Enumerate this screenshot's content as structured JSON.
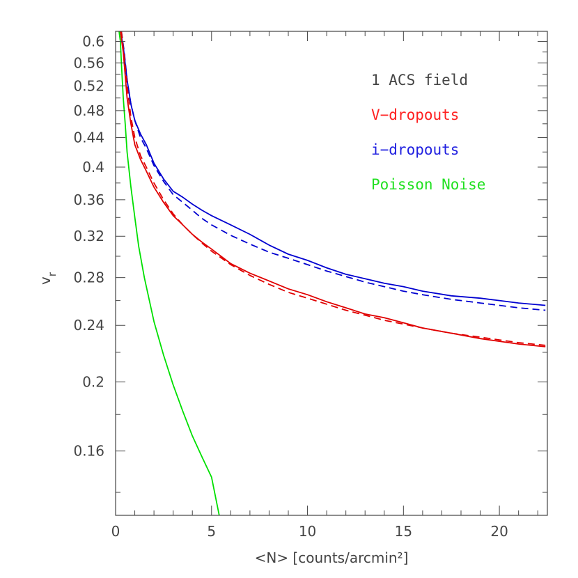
{
  "chart_data": {
    "type": "line",
    "title": "",
    "xlabel": "<N> [counts/arcmin²]",
    "ylabel_main": "v",
    "ylabel_sub": "r",
    "xlim": [
      0,
      22.5
    ],
    "ylim": [
      0.13,
      0.62
    ],
    "yscale": "log",
    "grid": false,
    "legend_position": "top-right",
    "x_ticks": [
      0,
      5,
      10,
      15,
      20
    ],
    "x_tick_labels": [
      "0",
      "5",
      "10",
      "15",
      "20"
    ],
    "y_ticks": [
      0.16,
      0.2,
      0.24,
      0.28,
      0.32,
      0.36,
      0.4,
      0.44,
      0.48,
      0.52,
      0.56,
      0.6
    ],
    "y_tick_labels": [
      "0.16",
      "0.2",
      "0.24",
      "0.28",
      "0.32",
      "0.36",
      "0.4",
      "0.44",
      "0.48",
      "0.52",
      "0.56",
      "0.6"
    ],
    "legend": {
      "header": "1 ACS field",
      "header_color": "#444444",
      "entries": [
        {
          "label": "V−dropouts",
          "color": "#ff2020"
        },
        {
          "label": "i−dropouts",
          "color": "#2020e0"
        },
        {
          "label": "Poisson Noise",
          "color": "#20e020"
        }
      ]
    },
    "series": [
      {
        "color": "#0000d0",
        "dash": "solid",
        "x": [
          0.25,
          0.4,
          0.6,
          0.8,
          1.0,
          1.3,
          1.6,
          2.0,
          2.5,
          3.0,
          3.5,
          4.0,
          4.5,
          5.0,
          6.0,
          7.0,
          8.0,
          9.0,
          10.0,
          11.0,
          12.0,
          13.0,
          14.0,
          15.0,
          16.0,
          17.5,
          19.0,
          20.0,
          21.0,
          22.4
        ],
        "y": [
          0.62,
          0.59,
          0.53,
          0.49,
          0.465,
          0.445,
          0.43,
          0.405,
          0.385,
          0.37,
          0.363,
          0.355,
          0.348,
          0.342,
          0.332,
          0.322,
          0.311,
          0.302,
          0.296,
          0.289,
          0.283,
          0.279,
          0.275,
          0.272,
          0.268,
          0.264,
          0.262,
          0.26,
          0.258,
          0.256
        ]
      },
      {
        "color": "#0000d0",
        "dash": "dashed",
        "x": [
          0.3,
          0.45,
          0.6,
          0.8,
          1.0,
          1.3,
          1.6,
          2.0,
          2.5,
          3.0,
          3.5,
          4.0,
          4.5,
          5.0,
          6.0,
          7.0,
          8.0,
          9.0,
          10.0,
          11.0,
          12.0,
          13.0,
          14.0,
          15.0,
          16.0,
          17.5,
          19.0,
          20.0,
          21.0,
          22.4
        ],
        "y": [
          0.62,
          0.58,
          0.53,
          0.49,
          0.465,
          0.44,
          0.425,
          0.402,
          0.382,
          0.366,
          0.357,
          0.348,
          0.339,
          0.332,
          0.321,
          0.312,
          0.304,
          0.298,
          0.292,
          0.286,
          0.281,
          0.276,
          0.272,
          0.268,
          0.265,
          0.261,
          0.258,
          0.256,
          0.254,
          0.252
        ]
      },
      {
        "color": "#e00000",
        "dash": "solid",
        "x": [
          0.25,
          0.4,
          0.6,
          0.8,
          1.0,
          1.3,
          1.6,
          2.0,
          2.5,
          3.0,
          3.5,
          4.0,
          4.5,
          5.0,
          6.0,
          7.0,
          8.0,
          9.0,
          10.0,
          11.0,
          12.0,
          13.0,
          14.0,
          15.0,
          16.0,
          17.5,
          19.0,
          20.0,
          21.0,
          22.4
        ],
        "y": [
          0.62,
          0.58,
          0.5,
          0.46,
          0.43,
          0.41,
          0.395,
          0.375,
          0.357,
          0.342,
          0.332,
          0.322,
          0.314,
          0.307,
          0.293,
          0.284,
          0.277,
          0.27,
          0.265,
          0.259,
          0.254,
          0.249,
          0.246,
          0.242,
          0.238,
          0.234,
          0.23,
          0.228,
          0.226,
          0.224
        ]
      },
      {
        "color": "#e00000",
        "dash": "dashed",
        "x": [
          0.3,
          0.45,
          0.6,
          0.8,
          1.0,
          1.3,
          1.6,
          2.0,
          2.5,
          3.0,
          3.5,
          4.0,
          4.5,
          5.0,
          6.0,
          7.0,
          8.0,
          9.0,
          10.0,
          11.0,
          12.0,
          13.0,
          14.0,
          15.0,
          16.0,
          17.5,
          19.0,
          20.0,
          21.0,
          22.4
        ],
        "y": [
          0.62,
          0.57,
          0.52,
          0.47,
          0.44,
          0.415,
          0.4,
          0.38,
          0.36,
          0.344,
          0.332,
          0.322,
          0.313,
          0.305,
          0.292,
          0.282,
          0.274,
          0.267,
          0.262,
          0.257,
          0.252,
          0.248,
          0.244,
          0.241,
          0.238,
          0.234,
          0.231,
          0.229,
          0.227,
          0.225
        ]
      },
      {
        "color": "#00e000",
        "dash": "solid",
        "x": [
          0.18,
          0.25,
          0.3,
          0.4,
          0.5,
          0.6,
          0.8,
          1.0,
          1.2,
          1.5,
          2.0,
          2.5,
          3.0,
          3.5,
          4.0,
          4.5,
          5.0,
          5.4
        ],
        "y": [
          0.62,
          0.6,
          0.56,
          0.5,
          0.46,
          0.42,
          0.375,
          0.34,
          0.31,
          0.28,
          0.243,
          0.218,
          0.198,
          0.182,
          0.168,
          0.157,
          0.147,
          0.13
        ]
      }
    ]
  }
}
